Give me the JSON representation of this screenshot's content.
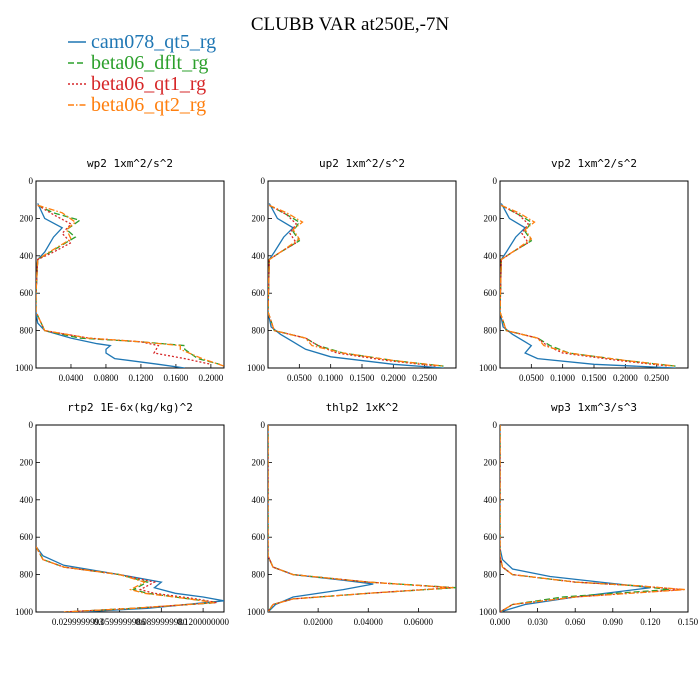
{
  "chart_data": {
    "type": "line",
    "title": "CLUBB VAR at250E,-7N",
    "legend": {
      "placement": "top-left",
      "entries": [
        {
          "name": "cam078_qt5_rg",
          "color": "#1f77b4",
          "dash": "solid"
        },
        {
          "name": "beta06_dflt_rg",
          "color": "#2ca02c",
          "dash": "dash"
        },
        {
          "name": "beta06_qt1_rg",
          "color": "#d62728",
          "dash": "dot"
        },
        {
          "name": "beta06_qt2_rg",
          "color": "#ff7f0e",
          "dash": "dashdot"
        }
      ]
    },
    "y_axis": {
      "ticks": [
        0,
        200,
        400,
        600,
        800,
        1000
      ],
      "ylim": [
        0,
        1000
      ],
      "inverted": true
    },
    "panels": [
      {
        "title": "wp2 1xm^2/s^2",
        "xlim": [
          0.0,
          0.215
        ],
        "xticks": [
          "0.0400",
          "0.0800",
          "0.1200",
          "0.1600",
          "0.2000"
        ],
        "xtick_values": [
          0.04,
          0.08,
          0.12,
          0.16,
          0.2
        ],
        "series": [
          {
            "name": "cam078_qt5_rg",
            "x": [
              0.002,
              0.01,
              0.03,
              0.02,
              0.01,
              0.002,
              0,
              0,
              0.002,
              0.01,
              0.04,
              0.07,
              0.085,
              0.08,
              0.08,
              0.09,
              0.14,
              0.17
            ],
            "y": [
              120,
              200,
              250,
              300,
              380,
              420,
              600,
              700,
              760,
              800,
              840,
              870,
              880,
              900,
              920,
              950,
              980,
              1000
            ]
          },
          {
            "name": "beta06_dflt_rg",
            "x": [
              0.002,
              0.02,
              0.05,
              0.035,
              0.045,
              0.02,
              0.002,
              0,
              0,
              0.01,
              0.05,
              0.12,
              0.17,
              0.17,
              0.185,
              0.21
            ],
            "y": [
              130,
              170,
              210,
              260,
              300,
              370,
              420,
              600,
              700,
              800,
              840,
              860,
              880,
              900,
              950,
              980
            ]
          },
          {
            "name": "beta06_qt1_rg",
            "x": [
              0.002,
              0.02,
              0.04,
              0.03,
              0.04,
              0.02,
              0.002,
              0,
              0,
              0.01,
              0.06,
              0.12,
              0.14,
              0.135,
              0.17,
              0.2
            ],
            "y": [
              130,
              180,
              230,
              280,
              330,
              380,
              420,
              600,
              700,
              800,
              840,
              860,
              880,
              920,
              950,
              980
            ]
          },
          {
            "name": "beta06_qt2_rg",
            "x": [
              0.002,
              0.03,
              0.045,
              0.035,
              0.04,
              0.015,
              0.002,
              0,
              0,
              0.01,
              0.06,
              0.12,
              0.165,
              0.165,
              0.19,
              0.215
            ],
            "y": [
              130,
              170,
              220,
              260,
              310,
              380,
              420,
              600,
              700,
              800,
              840,
              860,
              880,
              900,
              950,
              990
            ]
          }
        ]
      },
      {
        "title": "up2 1xm^2/s^2",
        "xlim": [
          0.0,
          0.3
        ],
        "xticks": [
          "0.0500",
          "0.1000",
          "0.1500",
          "0.2000",
          "0.2500"
        ],
        "xtick_values": [
          0.05,
          0.1,
          0.15,
          0.2,
          0.25
        ],
        "series": [
          {
            "name": "cam078_qt5_rg",
            "x": [
              0.002,
              0.015,
              0.04,
              0.025,
              0.01,
              0.002,
              0,
              0.005,
              0.02,
              0.04,
              0.05,
              0.06,
              0.1,
              0.2,
              0.28
            ],
            "y": [
              120,
              200,
              250,
              300,
              380,
              420,
              700,
              780,
              820,
              860,
              880,
              900,
              940,
              980,
              1000
            ]
          },
          {
            "name": "beta06_dflt_rg",
            "x": [
              0.002,
              0.03,
              0.05,
              0.04,
              0.05,
              0.02,
              0.002,
              0,
              0.01,
              0.06,
              0.08,
              0.12,
              0.2,
              0.28
            ],
            "y": [
              130,
              180,
              220,
              270,
              320,
              380,
              420,
              700,
              800,
              840,
              880,
              920,
              960,
              990
            ]
          },
          {
            "name": "beta06_qt1_rg",
            "x": [
              0.002,
              0.03,
              0.045,
              0.035,
              0.045,
              0.02,
              0.002,
              0,
              0.01,
              0.06,
              0.08,
              0.11,
              0.19,
              0.27
            ],
            "y": [
              130,
              180,
              230,
              280,
              330,
              380,
              420,
              700,
              800,
              840,
              880,
              920,
              960,
              990
            ]
          },
          {
            "name": "beta06_qt2_rg",
            "x": [
              0.002,
              0.03,
              0.055,
              0.04,
              0.05,
              0.02,
              0.002,
              0,
              0.01,
              0.06,
              0.07,
              0.12,
              0.2,
              0.28
            ],
            "y": [
              130,
              170,
              220,
              260,
              310,
              380,
              420,
              700,
              800,
              840,
              880,
              920,
              960,
              990
            ]
          }
        ]
      },
      {
        "title": "vp2 1xm^2/s^2",
        "xlim": [
          0.0,
          0.3
        ],
        "xticks": [
          "0.0500",
          "0.1000",
          "0.1500",
          "0.2000",
          "0.2500"
        ],
        "xtick_values": [
          0.05,
          0.1,
          0.15,
          0.2,
          0.25
        ],
        "series": [
          {
            "name": "cam078_qt5_rg",
            "x": [
              0.002,
              0.015,
              0.04,
              0.025,
              0.01,
              0.002,
              0,
              0.005,
              0.02,
              0.04,
              0.05,
              0.04,
              0.06,
              0.15,
              0.28
            ],
            "y": [
              120,
              200,
              250,
              300,
              380,
              420,
              700,
              780,
              820,
              860,
              880,
              920,
              950,
              980,
              1000
            ]
          },
          {
            "name": "beta06_dflt_rg",
            "x": [
              0.002,
              0.03,
              0.05,
              0.04,
              0.05,
              0.02,
              0.002,
              0,
              0.01,
              0.06,
              0.08,
              0.11,
              0.2,
              0.28
            ],
            "y": [
              130,
              180,
              220,
              270,
              320,
              380,
              420,
              700,
              800,
              840,
              880,
              920,
              960,
              990
            ]
          },
          {
            "name": "beta06_qt1_rg",
            "x": [
              0.002,
              0.03,
              0.045,
              0.035,
              0.045,
              0.02,
              0.002,
              0,
              0.01,
              0.06,
              0.075,
              0.1,
              0.19,
              0.27
            ],
            "y": [
              130,
              180,
              230,
              280,
              330,
              380,
              420,
              700,
              800,
              840,
              880,
              920,
              960,
              990
            ]
          },
          {
            "name": "beta06_qt2_rg",
            "x": [
              0.002,
              0.03,
              0.055,
              0.04,
              0.05,
              0.02,
              0.002,
              0,
              0.01,
              0.06,
              0.07,
              0.11,
              0.2,
              0.28
            ],
            "y": [
              130,
              170,
              220,
              260,
              310,
              380,
              420,
              700,
              800,
              840,
              880,
              920,
              960,
              990
            ]
          }
        ]
      },
      {
        "title": "rtp2 1E-6x(kg/kg)^2",
        "xlim": [
          0.0,
          0.135
        ],
        "xticks": [
          "0.0299999993",
          "0.0599999986",
          "0.0899999980",
          "0.1200000000"
        ],
        "xtick_values": [
          0.03,
          0.06,
          0.09,
          0.12
        ],
        "series": [
          {
            "name": "cam078_qt5_rg",
            "x": [
              0,
              0.005,
              0.02,
              0.06,
              0.09,
              0.085,
              0.1,
              0.12,
              0.135,
              0.08,
              0.03
            ],
            "y": [
              650,
              700,
              750,
              800,
              840,
              870,
              900,
              920,
              940,
              980,
              1000
            ]
          },
          {
            "name": "beta06_dflt_rg",
            "x": [
              0,
              0.005,
              0.02,
              0.06,
              0.08,
              0.07,
              0.08,
              0.11,
              0.13,
              0.07,
              0.02
            ],
            "y": [
              650,
              720,
              760,
              800,
              840,
              880,
              900,
              930,
              950,
              980,
              1000
            ]
          },
          {
            "name": "beta06_qt1_rg",
            "x": [
              0,
              0.005,
              0.02,
              0.06,
              0.085,
              0.075,
              0.085,
              0.115,
              0.13,
              0.07,
              0.02
            ],
            "y": [
              650,
              720,
              760,
              800,
              840,
              880,
              900,
              930,
              950,
              980,
              1000
            ]
          },
          {
            "name": "beta06_qt2_rg",
            "x": [
              0,
              0.005,
              0.02,
              0.06,
              0.078,
              0.068,
              0.078,
              0.11,
              0.128,
              0.07,
              0.02
            ],
            "y": [
              650,
              720,
              760,
              800,
              840,
              880,
              900,
              930,
              950,
              980,
              1000
            ]
          }
        ]
      },
      {
        "title": "thlp2 1xK^2",
        "xlim": [
          0.0,
          0.075
        ],
        "xticks": [
          "0.02000",
          "0.04000",
          "0.06000"
        ],
        "xtick_values": [
          0.02,
          0.04,
          0.06
        ],
        "series": [
          {
            "name": "cam078_qt5_rg",
            "x": [
              0,
              0,
              0,
              0.002,
              0.01,
              0.03,
              0.042,
              0.03,
              0.01,
              0.003,
              0
            ],
            "y": [
              0,
              600,
              700,
              760,
              800,
              830,
              850,
              880,
              920,
              960,
              1000
            ]
          },
          {
            "name": "beta06_dflt_rg",
            "x": [
              0,
              0,
              0,
              0.002,
              0.01,
              0.04,
              0.075,
              0.04,
              0.01,
              0.002,
              0
            ],
            "y": [
              0,
              600,
              700,
              760,
              800,
              840,
              870,
              900,
              930,
              960,
              1000
            ]
          },
          {
            "name": "beta06_qt1_rg",
            "x": [
              0,
              0,
              0,
              0.002,
              0.01,
              0.04,
              0.073,
              0.04,
              0.01,
              0.002,
              0
            ],
            "y": [
              0,
              600,
              700,
              760,
              800,
              840,
              870,
              900,
              930,
              960,
              1000
            ]
          },
          {
            "name": "beta06_qt2_rg",
            "x": [
              0,
              0,
              0,
              0.002,
              0.01,
              0.04,
              0.074,
              0.04,
              0.01,
              0.002,
              0
            ],
            "y": [
              0,
              600,
              700,
              760,
              800,
              840,
              870,
              900,
              930,
              960,
              1000
            ]
          }
        ]
      },
      {
        "title": "wp3 1xm^3/s^3",
        "xlim": [
          0.0,
          0.15
        ],
        "xticks": [
          "0.000",
          "0.030",
          "0.060",
          "0.090",
          "0.120",
          "0.150"
        ],
        "xtick_values": [
          0.0,
          0.03,
          0.06,
          0.09,
          0.12,
          0.15
        ],
        "series": [
          {
            "name": "cam078_qt5_rg",
            "x": [
              0,
              0,
              0,
              0.002,
              0.01,
              0.04,
              0.08,
              0.12,
              0.06,
              0.02,
              0
            ],
            "y": [
              0,
              600,
              660,
              720,
              770,
              810,
              840,
              870,
              920,
              960,
              1000
            ]
          },
          {
            "name": "beta06_dflt_rg",
            "x": [
              0,
              0,
              0,
              0.002,
              0.01,
              0.06,
              0.11,
              0.135,
              0.05,
              0.01,
              0
            ],
            "y": [
              0,
              600,
              700,
              760,
              800,
              840,
              860,
              880,
              920,
              960,
              1000
            ]
          },
          {
            "name": "beta06_qt1_rg",
            "x": [
              0,
              0,
              0,
              0.002,
              0.01,
              0.06,
              0.11,
              0.145,
              0.06,
              0.01,
              0
            ],
            "y": [
              0,
              600,
              700,
              760,
              800,
              840,
              860,
              880,
              920,
              960,
              1000
            ]
          },
          {
            "name": "beta06_qt2_rg",
            "x": [
              0,
              0,
              0,
              0.002,
              0.01,
              0.06,
              0.11,
              0.148,
              0.06,
              0.01,
              0
            ],
            "y": [
              0,
              600,
              700,
              760,
              800,
              840,
              860,
              880,
              920,
              960,
              1000
            ]
          }
        ]
      }
    ]
  }
}
